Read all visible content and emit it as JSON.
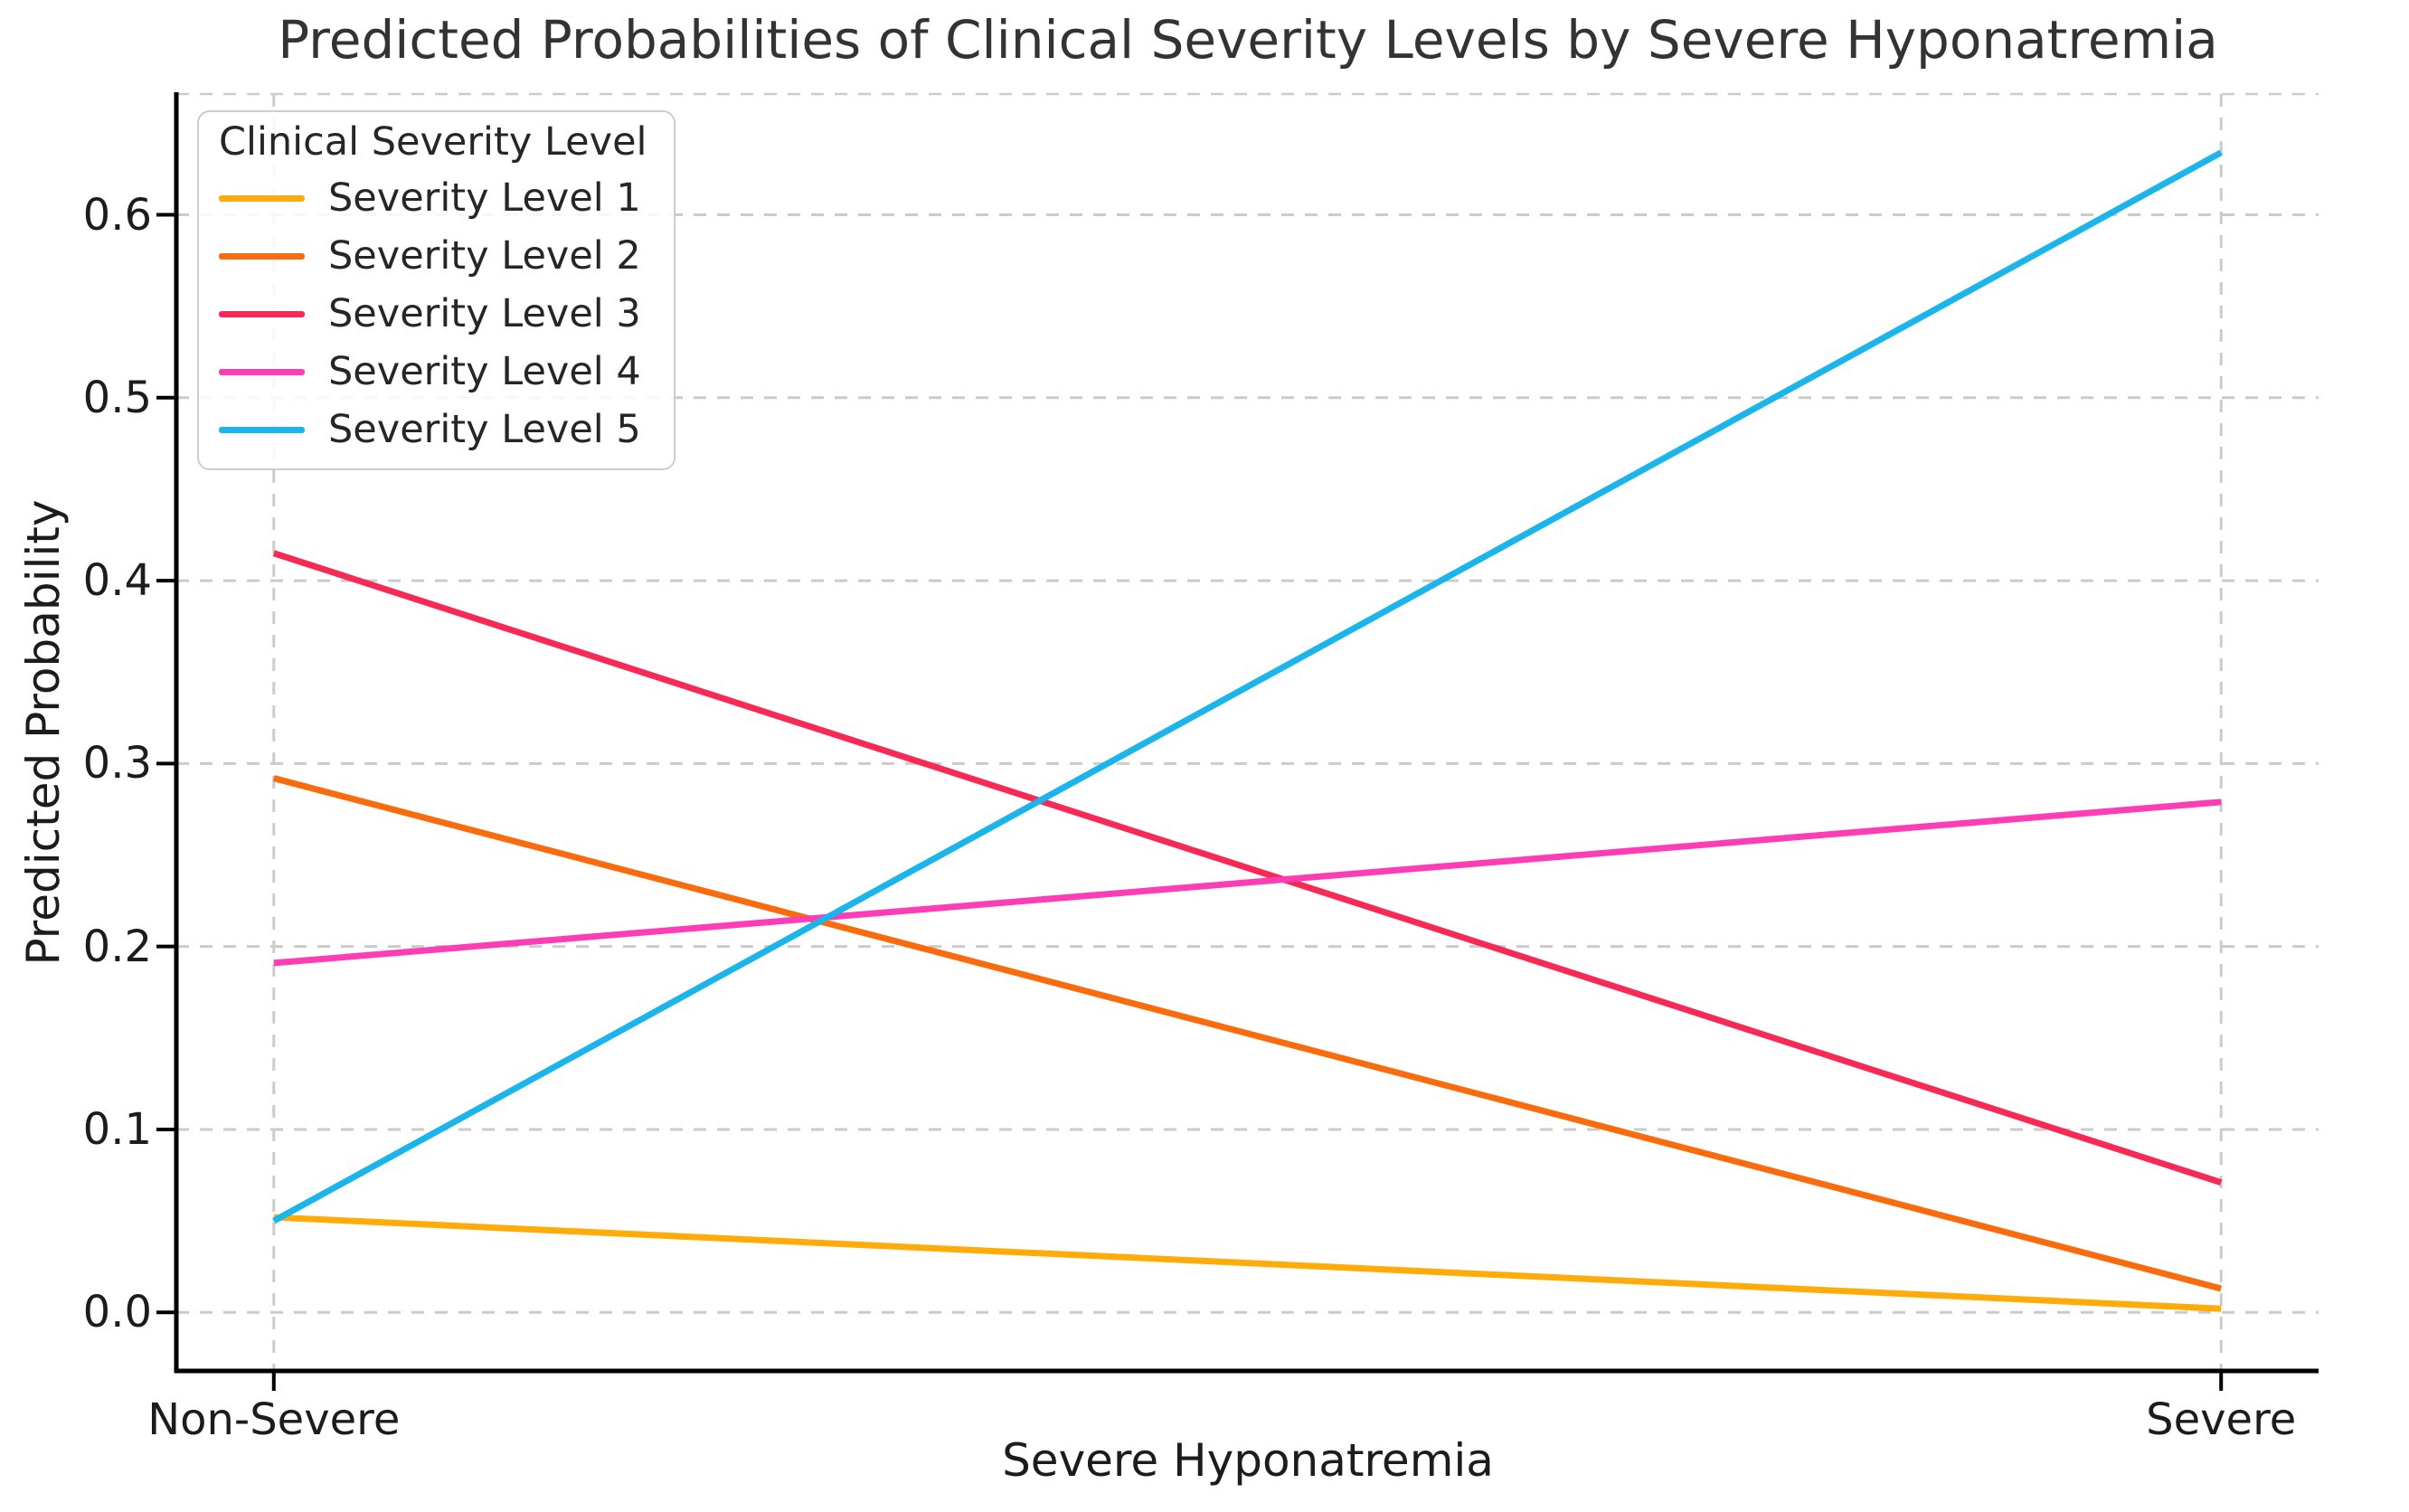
{
  "chart_data": {
    "type": "line",
    "title": "Predicted Probabilities of Clinical Severity Levels by Severe Hyponatremia",
    "xlabel": "Severe Hyponatremia",
    "ylabel": "Predicted Probability",
    "categories": [
      "Non-Severe",
      "Severe"
    ],
    "category_positions": [
      0.0455,
      0.9545
    ],
    "yticks": [
      0.0,
      0.1,
      0.2,
      0.3,
      0.4,
      0.5,
      0.6
    ],
    "ytick_labels": [
      "0.0",
      "0.1",
      "0.2",
      "0.3",
      "0.4",
      "0.5",
      "0.6"
    ],
    "ylim": [
      -0.032,
      0.666
    ],
    "grid": true,
    "grid_style": "dashed",
    "legend": {
      "title": "Clinical Severity Level",
      "position": "upper-left"
    },
    "series": [
      {
        "name": "Severity Level 1",
        "color": "#FFAB09",
        "values": [
          0.052,
          0.002
        ]
      },
      {
        "name": "Severity Level 2",
        "color": "#FA6B0E",
        "values": [
          0.292,
          0.013
        ]
      },
      {
        "name": "Severity Level 3",
        "color": "#F72A55",
        "values": [
          0.415,
          0.071
        ]
      },
      {
        "name": "Severity Level 4",
        "color": "#FD3DB5",
        "values": [
          0.191,
          0.279
        ]
      },
      {
        "name": "Severity Level 5",
        "color": "#1CB5EB",
        "values": [
          0.05,
          0.634
        ]
      }
    ],
    "colors": {
      "grid": "#cbcbcb",
      "spine": "#000000",
      "top_spine": "#cccccc",
      "title_text": "#333333",
      "tick_text": "#1c1c1c"
    }
  }
}
